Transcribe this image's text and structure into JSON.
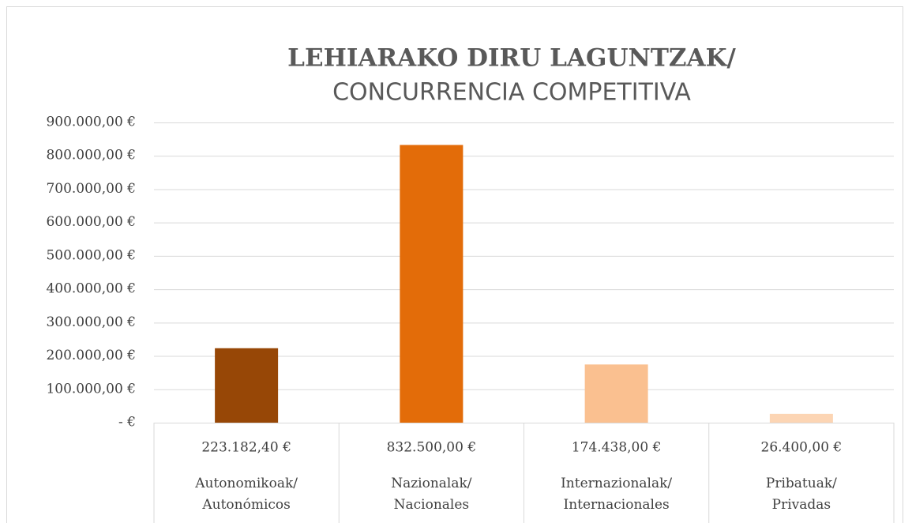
{
  "chart_data": {
    "type": "bar",
    "title": "LEHIARAKO DIRU LAGUNTZAK/",
    "subtitle": "CONCURRENCIA COMPETITIVA",
    "categories": [
      "Autonomikoak/\nAutonómicos",
      "Nazionalak/\nNacionales",
      "Internazionalak/\nInternacionales",
      "Pribatuak/\nPrivadas"
    ],
    "values": [
      223182.4,
      832500,
      174438,
      26400
    ],
    "value_labels": [
      "223.182,40 €",
      "832.500,00 €",
      "174.438,00 €",
      "26.400,00 €"
    ],
    "colors": [
      "#974706",
      "#e36c09",
      "#fac090",
      "#fcd5b4"
    ],
    "ylim": [
      0,
      900000
    ],
    "yticks": [
      {
        "value": 0,
        "label": "-   €"
      },
      {
        "value": 100000,
        "label": "100.000,00 €"
      },
      {
        "value": 200000,
        "label": "200.000,00 €"
      },
      {
        "value": 300000,
        "label": "300.000,00 €"
      },
      {
        "value": 400000,
        "label": "400.000,00 €"
      },
      {
        "value": 500000,
        "label": "500.000,00 €"
      },
      {
        "value": 600000,
        "label": "600.000,00 €"
      },
      {
        "value": 700000,
        "label": "700.000,00 €"
      },
      {
        "value": 800000,
        "label": "800.000,00 €"
      },
      {
        "value": 900000,
        "label": "900.000,00 €"
      }
    ],
    "grid": true
  }
}
